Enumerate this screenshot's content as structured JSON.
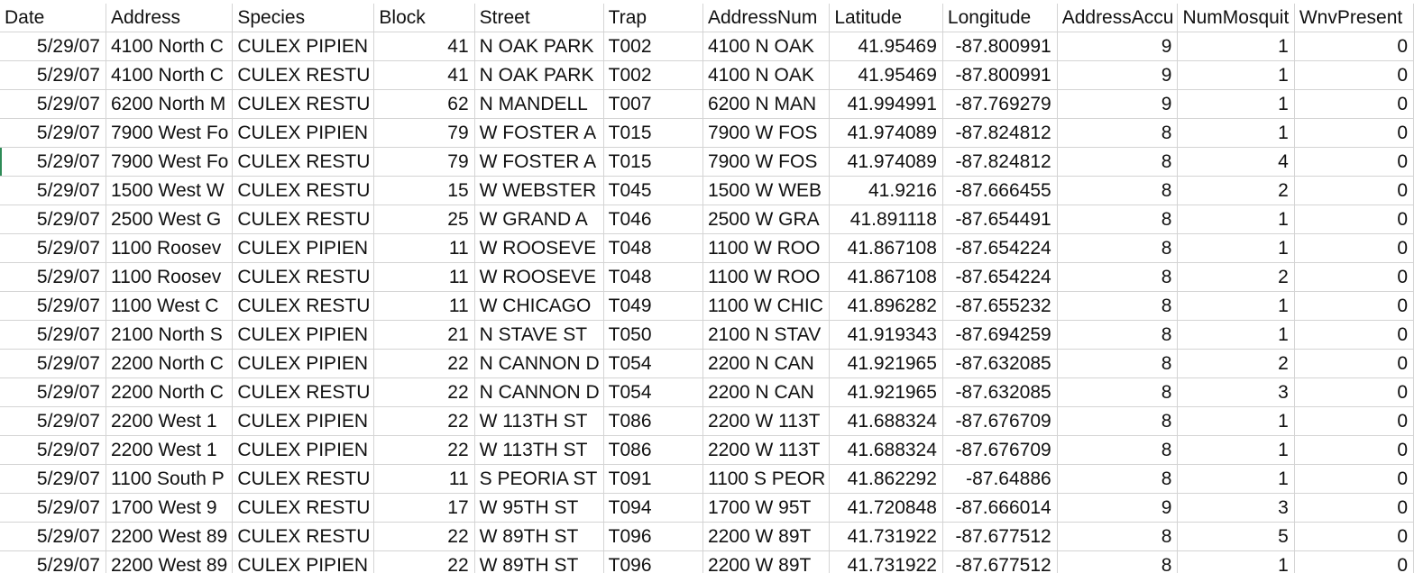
{
  "sheet": {
    "columns": [
      {
        "key": "Date",
        "label": "Date",
        "align": "num"
      },
      {
        "key": "Address",
        "label": "Address",
        "align": "txt"
      },
      {
        "key": "Species",
        "label": "Species",
        "align": "txt"
      },
      {
        "key": "Block",
        "label": "Block",
        "align": "num"
      },
      {
        "key": "Street",
        "label": "Street",
        "align": "txt"
      },
      {
        "key": "Trap",
        "label": "Trap",
        "align": "txt"
      },
      {
        "key": "AddressNum",
        "label": "AddressNum",
        "align": "txt"
      },
      {
        "key": "Latitude",
        "label": "Latitude",
        "align": "num"
      },
      {
        "key": "Longitude",
        "label": "Longitude",
        "align": "num"
      },
      {
        "key": "AddressAccu",
        "label": "AddressAccu",
        "align": "num"
      },
      {
        "key": "NumMosquit",
        "label": "NumMosquit",
        "align": "num"
      },
      {
        "key": "WnvPresent",
        "label": "WnvPresent",
        "align": "num"
      }
    ],
    "rows": [
      [
        "5/29/07",
        "4100 North C",
        "CULEX PIPIEN",
        "41",
        "N OAK PARK",
        "T002",
        "4100  N OAK",
        "41.95469",
        "-87.800991",
        "9",
        "1",
        "0"
      ],
      [
        "5/29/07",
        "4100 North C",
        "CULEX RESTU",
        "41",
        "N OAK PARK",
        "T002",
        "4100  N OAK",
        "41.95469",
        "-87.800991",
        "9",
        "1",
        "0"
      ],
      [
        "5/29/07",
        "6200 North M",
        "CULEX RESTU",
        "62",
        "N MANDELL",
        "T007",
        "6200  N MAN",
        "41.994991",
        "-87.769279",
        "9",
        "1",
        "0"
      ],
      [
        "5/29/07",
        "7900 West Fo",
        "CULEX PIPIEN",
        "79",
        "W FOSTER A",
        "T015",
        "7900  W FOS",
        "41.974089",
        "-87.824812",
        "8",
        "1",
        "0"
      ],
      [
        "5/29/07",
        "7900 West Fo",
        "CULEX RESTU",
        "79",
        "W FOSTER A",
        "T015",
        "7900  W FOS",
        "41.974089",
        "-87.824812",
        "8",
        "4",
        "0"
      ],
      [
        "5/29/07",
        "1500 West W",
        "CULEX RESTU",
        "15",
        "W WEBSTER",
        "T045",
        "1500  W WEB",
        "41.9216",
        "-87.666455",
        "8",
        "2",
        "0"
      ],
      [
        "5/29/07",
        "2500 West G",
        "CULEX RESTU",
        "25",
        "W GRAND A",
        "T046",
        "2500  W GRA",
        "41.891118",
        "-87.654491",
        "8",
        "1",
        "0"
      ],
      [
        "5/29/07",
        "1100 Roosev",
        "CULEX PIPIEN",
        "11",
        "W ROOSEVE",
        "T048",
        "1100  W ROO",
        "41.867108",
        "-87.654224",
        "8",
        "1",
        "0"
      ],
      [
        "5/29/07",
        "1100 Roosev",
        "CULEX RESTU",
        "11",
        "W ROOSEVE",
        "T048",
        "1100  W ROO",
        "41.867108",
        "-87.654224",
        "8",
        "2",
        "0"
      ],
      [
        "5/29/07",
        "1100 West C",
        "CULEX RESTU",
        "11",
        "W CHICAGO",
        "T049",
        "1100  W CHIC",
        "41.896282",
        "-87.655232",
        "8",
        "1",
        "0"
      ],
      [
        "5/29/07",
        "2100 North S",
        "CULEX PIPIEN",
        "21",
        "N STAVE ST",
        "T050",
        "2100  N STAV",
        "41.919343",
        "-87.694259",
        "8",
        "1",
        "0"
      ],
      [
        "5/29/07",
        "2200 North C",
        "CULEX PIPIEN",
        "22",
        "N CANNON D",
        "T054",
        "2200  N CAN",
        "41.921965",
        "-87.632085",
        "8",
        "2",
        "0"
      ],
      [
        "5/29/07",
        "2200 North C",
        "CULEX RESTU",
        "22",
        "N CANNON D",
        "T054",
        "2200  N CAN",
        "41.921965",
        "-87.632085",
        "8",
        "3",
        "0"
      ],
      [
        "5/29/07",
        "2200 West 1",
        "CULEX PIPIEN",
        "22",
        "W 113TH ST",
        "T086",
        "2200  W 113T",
        "41.688324",
        "-87.676709",
        "8",
        "1",
        "0"
      ],
      [
        "5/29/07",
        "2200 West 1",
        "CULEX PIPIEN",
        "22",
        "W 113TH ST",
        "T086",
        "2200  W 113T",
        "41.688324",
        "-87.676709",
        "8",
        "1",
        "0"
      ],
      [
        "5/29/07",
        "1100 South P",
        "CULEX RESTU",
        "11",
        "S PEORIA ST",
        "T091",
        "1100  S PEOR",
        "41.862292",
        "-87.64886",
        "8",
        "1",
        "0"
      ],
      [
        "5/29/07",
        "1700 West 9",
        "CULEX RESTU",
        "17",
        "W 95TH ST",
        "T094",
        "1700  W 95T",
        "41.720848",
        "-87.666014",
        "9",
        "3",
        "0"
      ],
      [
        "5/29/07",
        "2200 West 89",
        "CULEX RESTU",
        "22",
        "W 89TH ST",
        "T096",
        "2200  W 89T",
        "41.731922",
        "-87.677512",
        "8",
        "5",
        "0"
      ],
      [
        "5/29/07",
        "2200 West 89",
        "CULEX PIPIEN",
        "22",
        "W 89TH ST",
        "T096",
        "2200  W 89T",
        "41.731922",
        "-87.677512",
        "8",
        "1",
        "0"
      ]
    ]
  }
}
